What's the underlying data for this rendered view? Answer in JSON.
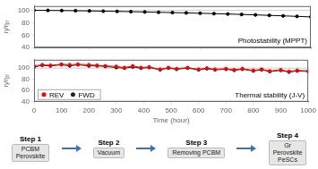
{
  "chart_data": [
    {
      "type": "line",
      "x": [
        0,
        50,
        100,
        150,
        200,
        250,
        300,
        350,
        400,
        450,
        500,
        550,
        600,
        650,
        700,
        750,
        800,
        850,
        900,
        950,
        1000
      ],
      "values": [
        100.2,
        100.0,
        99.8,
        99.5,
        99.2,
        98.8,
        98.4,
        98.0,
        97.5,
        97.0,
        96.5,
        96.0,
        95.4,
        94.8,
        94.2,
        93.5,
        92.8,
        92.0,
        91.2,
        90.4,
        89.5
      ],
      "color": "#000000",
      "marker": "circle",
      "ylabel": "η/η₀",
      "xlim": [
        0,
        1000
      ],
      "xticks": [
        0,
        200,
        400,
        600,
        800,
        1000
      ],
      "ylim": [
        40,
        107
      ],
      "yticks": [
        40,
        60,
        80,
        100
      ],
      "grid": false,
      "tick_labels": "y",
      "annotation": "Photostability (MPPT)",
      "reference_line": 100
    },
    {
      "type": "line",
      "x": [
        0,
        30,
        60,
        100,
        130,
        160,
        200,
        230,
        260,
        300,
        330,
        360,
        390,
        420,
        460,
        490,
        520,
        560,
        600,
        630,
        660,
        700,
        730,
        760,
        800,
        830,
        860,
        900,
        930,
        960,
        1000
      ],
      "series": [
        {
          "name": "REV",
          "color": "#ff0000",
          "values": [
            104,
            106,
            105,
            107,
            106,
            107,
            106,
            105,
            104,
            103,
            101,
            104,
            101,
            102,
            98,
            101,
            99,
            101,
            98,
            100,
            98,
            99,
            97,
            99,
            96,
            98,
            95,
            97,
            94,
            96,
            95
          ]
        },
        {
          "name": "FWD",
          "color": "#222222",
          "values": [
            102,
            105,
            104,
            106,
            104,
            106,
            104,
            104,
            103,
            101,
            100,
            102,
            100,
            101,
            97,
            100,
            98,
            100,
            97,
            99,
            97,
            98,
            96,
            98,
            95,
            97,
            94,
            96,
            93,
            95,
            94
          ]
        }
      ],
      "marker": "circle",
      "xlabel": "Time (hour)",
      "ylabel": "η/η₀",
      "xlim": [
        0,
        1000
      ],
      "xticks": [
        0,
        100,
        200,
        300,
        400,
        500,
        600,
        700,
        800,
        900,
        1000
      ],
      "ylim": [
        40,
        115
      ],
      "yticks": [
        40,
        60,
        80,
        100
      ],
      "grid": false,
      "legend": "lower left",
      "annotation": "Thermal stability (J-V)",
      "reference_line": 100
    },
    {
      "type": "diagram",
      "color": "#3d6fc9",
      "steps": [
        {
          "title": "Step 1",
          "texts": [
            "PCBM",
            "Perovskite"
          ]
        },
        {
          "title": "Step 2",
          "texts": [
            "Vacuum"
          ]
        },
        {
          "title": "Step 3",
          "texts": [
            "Removing PCBM"
          ]
        },
        {
          "title": "Step 4",
          "texts": [
            "Gr",
            "Perovskite",
            "PeSCs"
          ]
        }
      ]
    }
  ]
}
